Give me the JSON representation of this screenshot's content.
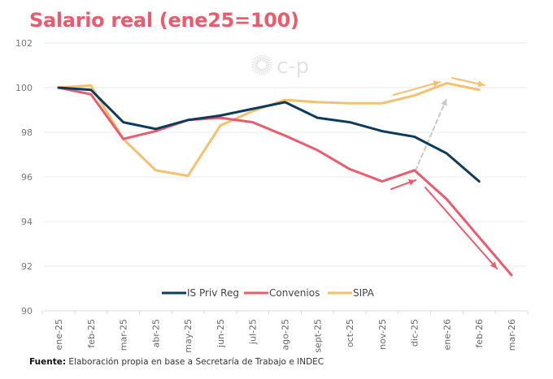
{
  "title": "Salario real (ene25=100)",
  "source": {
    "label": "Fuente:",
    "text": " Elaboración propia en base a Secretaría de Trabajo e INDEC"
  },
  "watermark": {
    "text": "c-p"
  },
  "colors": {
    "title": "#ec5a6c",
    "is_priv_reg": "#0d3b5e",
    "convenios": "#ec5a6c",
    "sipa": "#f5c06e",
    "annotation_gray": "#c8c8c8"
  },
  "chart_data": {
    "type": "line",
    "title": "Salario real (ene25=100)",
    "xlabel": "",
    "ylabel": "",
    "ylim": [
      90,
      102
    ],
    "yticks": [
      90,
      92,
      94,
      96,
      98,
      100,
      102
    ],
    "grid": true,
    "legend_position": "bottom-center",
    "categories": [
      "ene-25",
      "feb-25",
      "mar-25",
      "abr-25",
      "may-25",
      "jun-25",
      "jul-25",
      "ago-25",
      "sept-25",
      "oct-25",
      "nov-25",
      "dic-25",
      "ene-26",
      "feb-26",
      "mar-26"
    ],
    "series": [
      {
        "name": "IS Priv Reg",
        "color": "#0d3b5e",
        "values": [
          100,
          99.9,
          98.45,
          98.15,
          98.55,
          98.75,
          99.05,
          99.35,
          98.65,
          98.45,
          98.05,
          97.8,
          97.05,
          95.8,
          null
        ]
      },
      {
        "name": "Convenios",
        "color": "#ec5a6c",
        "values": [
          100,
          99.7,
          97.7,
          98.05,
          98.55,
          98.65,
          98.45,
          97.85,
          97.2,
          96.35,
          95.8,
          96.3,
          95.0,
          93.3,
          91.6
        ]
      },
      {
        "name": "SIPA",
        "color": "#f5c06e",
        "values": [
          100,
          100.1,
          97.7,
          96.3,
          96.05,
          98.3,
          98.95,
          99.45,
          99.35,
          99.3,
          99.3,
          99.65,
          100.2,
          99.9,
          null
        ]
      }
    ],
    "annotations": [
      {
        "type": "arrow",
        "color": "#f5c06e",
        "description": "upward trend SIPA nov-25 to ene-26"
      },
      {
        "type": "arrow",
        "color": "#f5c06e",
        "description": "slight decline SIPA ene-26 to feb-26"
      },
      {
        "type": "dashed-arrow",
        "color": "#c8c8c8",
        "description": "gap from Convenios dic-25 up to SIPA ene-26"
      },
      {
        "type": "arrow",
        "color": "#ec5a6c",
        "description": "Convenios rise nov-25 to dic-25"
      },
      {
        "type": "arrow",
        "color": "#ec5a6c",
        "description": "Convenios fall dic-25 to mar-26"
      }
    ]
  }
}
